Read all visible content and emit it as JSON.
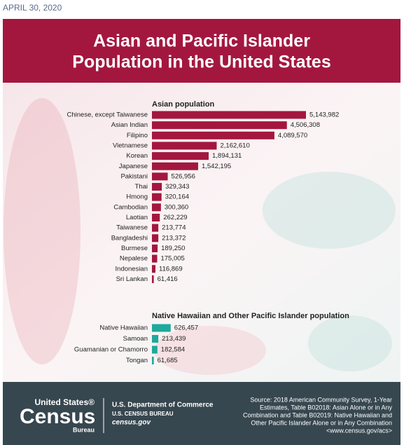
{
  "date": "APRIL 30, 2020",
  "title": [
    "Asian and Pacific Islander",
    "Population in the United States"
  ],
  "chart_data": [
    {
      "type": "bar",
      "title": "Asian population",
      "color": "#a3173f",
      "categories": [
        "Chinese, except Taiwanese",
        "Asian Indian",
        "Filipino",
        "Vietnamese",
        "Korean",
        "Japanese",
        "Pakistani",
        "Thai",
        "Hmong",
        "Cambodian",
        "Laotian",
        "Taiwanese",
        "Bangladeshi",
        "Burmese",
        "Nepalese",
        "Indonesian",
        "Sri Lankan"
      ],
      "values": [
        5143982,
        4506308,
        4089570,
        2162610,
        1894131,
        1542195,
        526956,
        329343,
        320164,
        300360,
        262229,
        213774,
        213372,
        189250,
        175005,
        116869,
        61416
      ],
      "value_labels": [
        "5,143,982",
        "4,506,308",
        "4,089,570",
        "2,162,610",
        "1,894,131",
        "1,542,195",
        "526,956",
        "329,343",
        "320,164",
        "300,360",
        "262,229",
        "213,774",
        "213,372",
        "189,250",
        "175,005",
        "116,869",
        "61,416"
      ]
    },
    {
      "type": "bar",
      "title": "Native Hawaiian and Other Pacific Islander population",
      "color": "#1fa99c",
      "categories": [
        "Native Hawaiian",
        "Samoan",
        "Guamanian or Chamorro",
        "Tongan"
      ],
      "values": [
        626457,
        213439,
        182584,
        61685
      ],
      "value_labels": [
        "626,457",
        "213,439",
        "182,584",
        "61,685"
      ]
    }
  ],
  "footer": {
    "logo": [
      "United States®",
      "Census",
      "Bureau"
    ],
    "agency": [
      "U.S. Department of Commerce",
      "U.S. CENSUS BUREAU",
      "census.gov"
    ],
    "source": [
      "Source: 2018 American Community Survey, 1-Year",
      "Estimates, Table B02018: Asian Alone or in Any",
      "Combination and Table B02019: Native Hawaiian and",
      "Other Pacific Islander Alone or in Any Combination",
      "<www.census.gov/acs>"
    ]
  }
}
